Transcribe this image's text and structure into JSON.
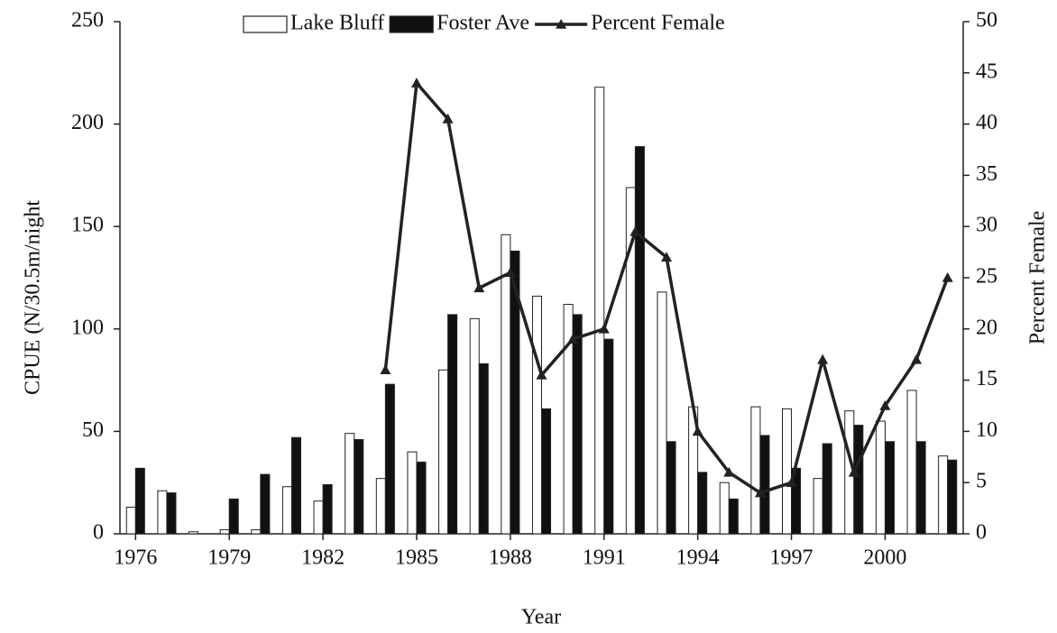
{
  "chart_data": {
    "type": "bar",
    "xlabel": "Year",
    "ylabel": "CPUE (N/30.5m/night",
    "y2label": "Percent Female",
    "x": [
      1976,
      1977,
      1978,
      1979,
      1980,
      1981,
      1982,
      1983,
      1984,
      1985,
      1986,
      1987,
      1988,
      1989,
      1990,
      1991,
      1992,
      1993,
      1994,
      1995,
      1996,
      1997,
      1998,
      1999,
      2000,
      2001,
      2002
    ],
    "xlim": [
      1975.5,
      2002.5
    ],
    "xticks": [
      1976,
      1979,
      1982,
      1985,
      1988,
      1991,
      1994,
      1997,
      2000
    ],
    "ylim": [
      0,
      250
    ],
    "yticks": [
      0,
      50,
      100,
      150,
      200,
      250
    ],
    "y2lim": [
      0,
      50
    ],
    "y2ticks": [
      0,
      5,
      10,
      15,
      20,
      25,
      30,
      35,
      40,
      45,
      50
    ],
    "series": [
      {
        "name": "Lake Bluff",
        "type": "bar",
        "color": "#ffffff",
        "values": [
          13,
          21,
          1,
          2,
          2,
          23,
          16,
          49,
          27,
          40,
          80,
          105,
          146,
          116,
          112,
          218,
          169,
          118,
          62,
          25,
          62,
          61,
          27,
          60,
          55,
          70,
          38
        ]
      },
      {
        "name": "Foster Ave",
        "type": "bar",
        "color": "#111111",
        "values": [
          32,
          20,
          0,
          17,
          29,
          47,
          24,
          46,
          73,
          35,
          107,
          83,
          138,
          61,
          107,
          95,
          189,
          45,
          30,
          17,
          48,
          32,
          44,
          53,
          45,
          45,
          36
        ]
      },
      {
        "name": "Percent Female",
        "type": "line",
        "axis": "y2",
        "color": "#222222",
        "values": [
          null,
          null,
          null,
          null,
          null,
          null,
          null,
          null,
          16,
          44,
          40.5,
          24,
          25.5,
          15.5,
          19,
          20,
          29.5,
          27,
          10,
          6,
          4,
          5,
          17,
          6,
          12.5,
          17,
          25
        ]
      }
    ]
  }
}
